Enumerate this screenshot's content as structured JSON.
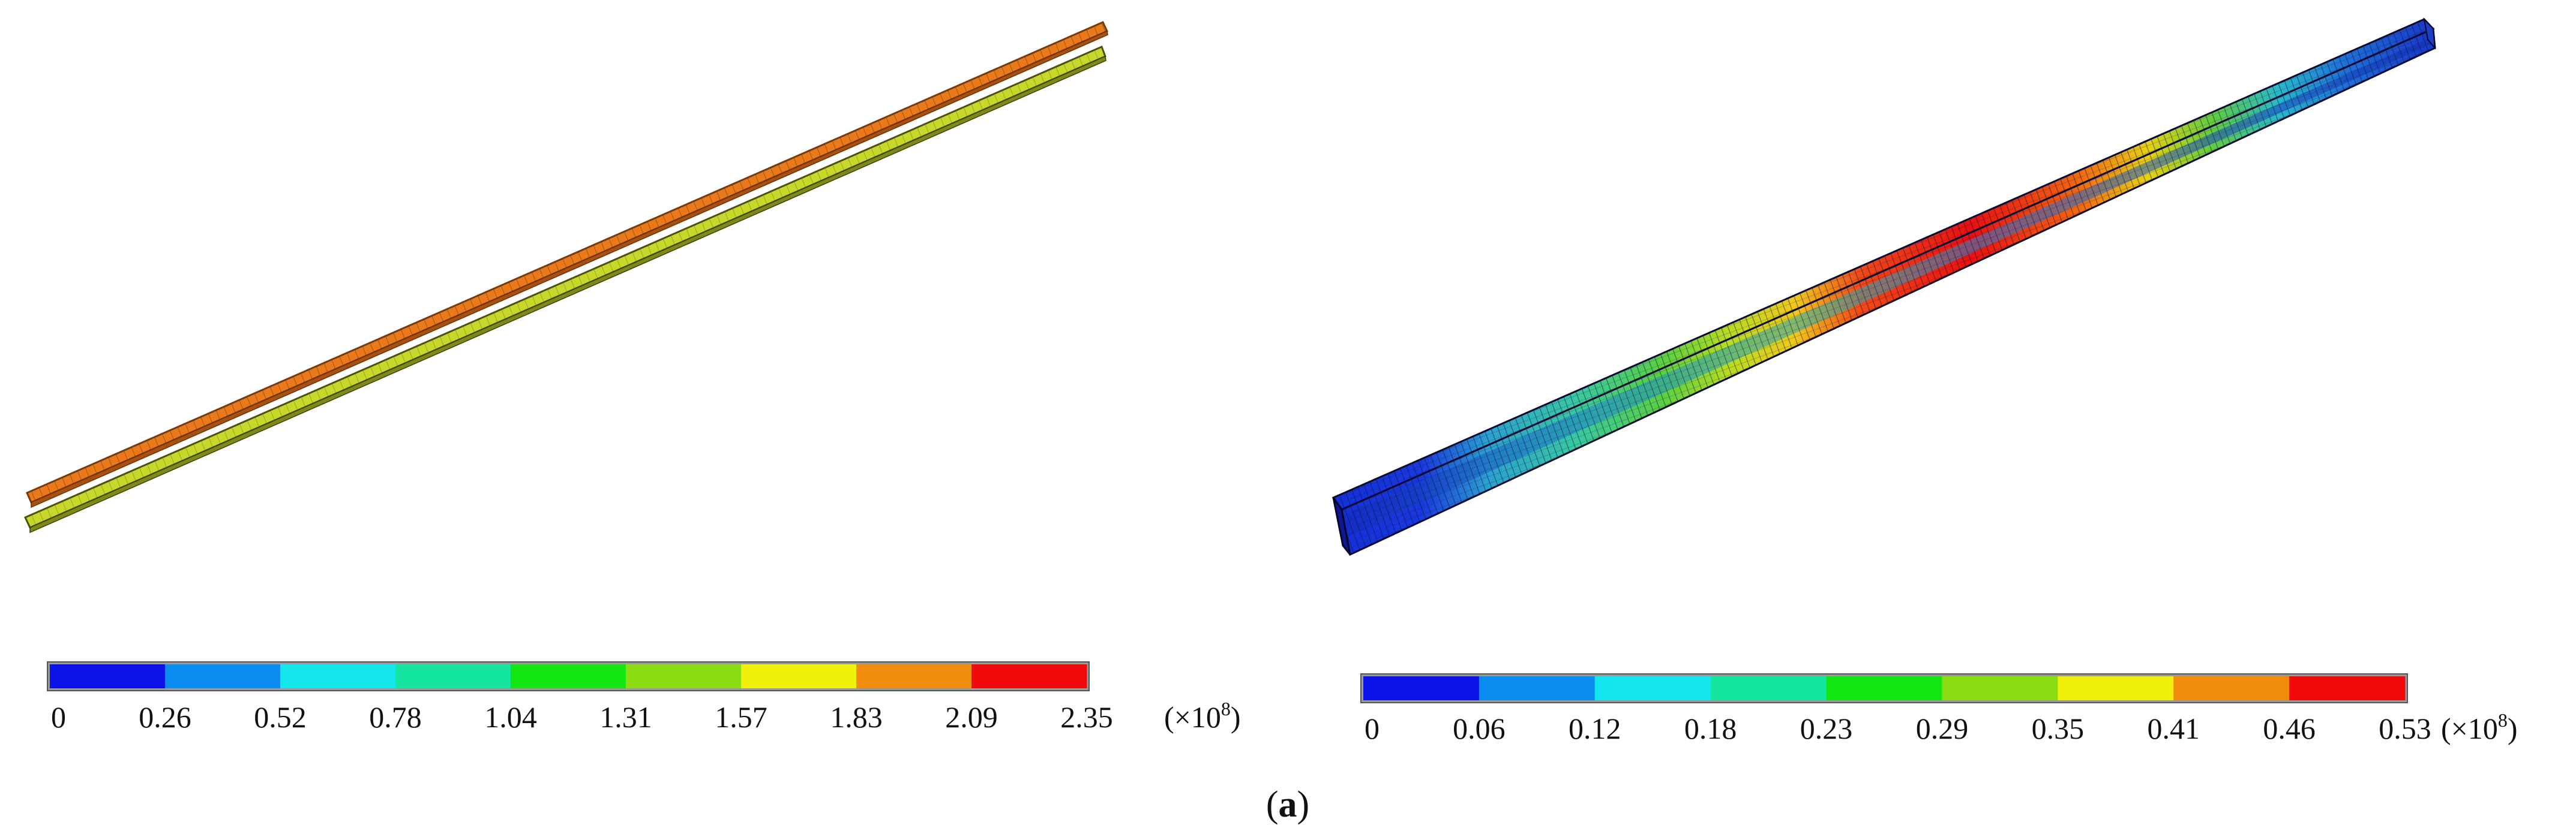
{
  "panels": [
    {
      "id": "left",
      "legend": {
        "ticks": [
          "0",
          "0.26",
          "0.52",
          "0.78",
          "1.04",
          "1.31",
          "1.57",
          "1.83",
          "2.09",
          "2.35"
        ],
        "unit_prefix": "(×10",
        "unit_exp": "8",
        "unit_suffix": ")",
        "colors": [
          "#0a14e6",
          "#0a8cf0",
          "#14e6f0",
          "#14e6a0",
          "#14e614",
          "#8cdc14",
          "#f0f00a",
          "#f08c0a",
          "#f00a0a"
        ]
      },
      "beams": {
        "upper_color": "#e9791a",
        "lower_color": "#c8d82a"
      }
    },
    {
      "id": "right",
      "legend": {
        "ticks": [
          "0",
          "0.06",
          "0.12",
          "0.18",
          "0.23",
          "0.29",
          "0.35",
          "0.41",
          "0.46",
          "0.53"
        ],
        "unit_prefix": "(×10",
        "unit_exp": "8",
        "unit_suffix": ")",
        "colors": [
          "#0a14e6",
          "#0a8cf0",
          "#14e6f0",
          "#14e6a0",
          "#14e614",
          "#8cdc14",
          "#f0f00a",
          "#f08c0a",
          "#f00a0a"
        ]
      }
    }
  ],
  "caption": {
    "open": "(",
    "letter": "a",
    "close": ")"
  }
}
